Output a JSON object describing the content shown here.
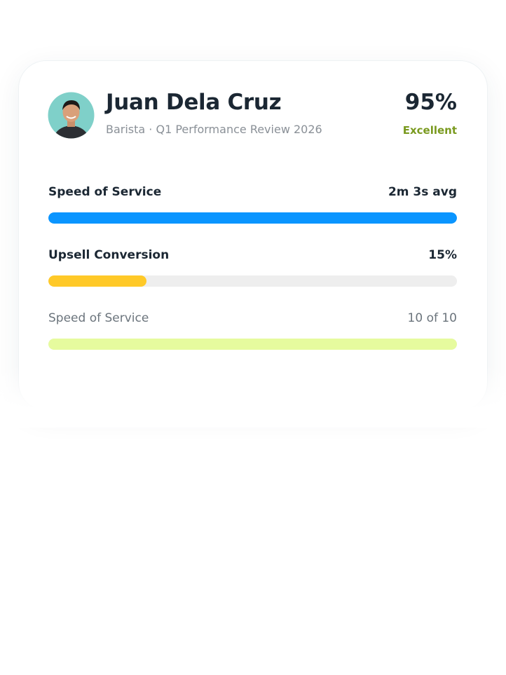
{
  "profile": {
    "name": "Juan Dela Cruz",
    "subtitle": "Barista · Q1 Performance Review 2026",
    "score": "95%",
    "rating": "Excellent"
  },
  "metrics": [
    {
      "label": "Speed of Service",
      "value": "2m 3s avg",
      "bar_fill": 100,
      "color": "#0a95ff"
    },
    {
      "label": "Upsell Conversion",
      "value": "15%",
      "bar_fill": 24,
      "color": "#ffc928"
    },
    {
      "label": "Speed of Service",
      "value": "10 of 10",
      "bar_fill": 100,
      "color": "#e6fb9e"
    }
  ]
}
